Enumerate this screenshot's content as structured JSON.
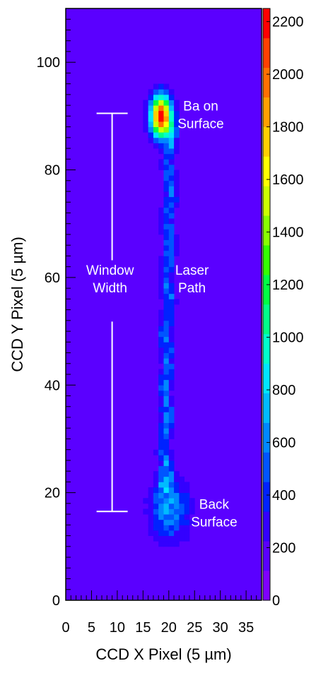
{
  "chart_data": {
    "type": "heatmap",
    "title": "",
    "xlabel": "CCD X Pixel (5 µm)",
    "ylabel": "CCD Y Pixel (5 µm)",
    "xlim": [
      0,
      38
    ],
    "ylim": [
      0,
      110
    ],
    "zlim": [
      0,
      2250
    ],
    "background_value": 120,
    "x_ticks": [
      0,
      5,
      10,
      15,
      20,
      25,
      30,
      35
    ],
    "x_tick_labels": [
      "0",
      "5",
      "10",
      "15",
      "20",
      "25",
      "30",
      "35"
    ],
    "y_ticks": [
      0,
      20,
      40,
      60,
      80,
      100
    ],
    "y_tick_labels": [
      "0",
      "20",
      "40",
      "60",
      "80",
      "100"
    ],
    "colorbar_ticks": [
      0,
      200,
      400,
      600,
      800,
      1000,
      1200,
      1400,
      1600,
      1800,
      2000,
      2200
    ],
    "colorbar_tick_labels": [
      "0",
      "200",
      "400",
      "600",
      "800",
      "1000",
      "1200",
      "1400",
      "1600",
      "1800",
      "2000",
      "2200"
    ],
    "palette": [
      "#7f00ff",
      "#5a00ff",
      "#3300ff",
      "#0022ff",
      "#0055ff",
      "#0088ff",
      "#00bbff",
      "#00e6ff",
      "#00ffcc",
      "#00ff88",
      "#00ff44",
      "#33ff00",
      "#88ff00",
      "#ccff00",
      "#ffff00",
      "#ffd000",
      "#ffa000",
      "#ff7000",
      "#ff4000",
      "#ff0000"
    ],
    "features": [
      {
        "name": "Ba on Surface spot",
        "x": 18.5,
        "y": 90,
        "sx": 1.4,
        "sy": 2.6,
        "peak": 2150
      },
      {
        "name": "Back Surface spot",
        "x": 20.2,
        "y": 17,
        "sx": 2.6,
        "sy": 4.0,
        "peak": 520
      },
      {
        "name": "Laser Path",
        "x_start": 19.2,
        "x_end": 20.3,
        "y_start": 20,
        "y_end": 88,
        "width": 0.9,
        "level": 380
      }
    ],
    "window_width": {
      "x": 9,
      "y_min": 16.5,
      "y_max": 90.5
    },
    "annotations": [
      {
        "lines": [
          "Ba on",
          "Surface"
        ],
        "x": 26.2,
        "y": 90.5
      },
      {
        "lines": [
          "Window",
          "Width"
        ],
        "x": 8.6,
        "y": 60
      },
      {
        "lines": [
          "Laser",
          "Path"
        ],
        "x": 24.5,
        "y": 60
      },
      {
        "lines": [
          "Back",
          "Surface"
        ],
        "x": 28.8,
        "y": 16.5
      }
    ]
  }
}
